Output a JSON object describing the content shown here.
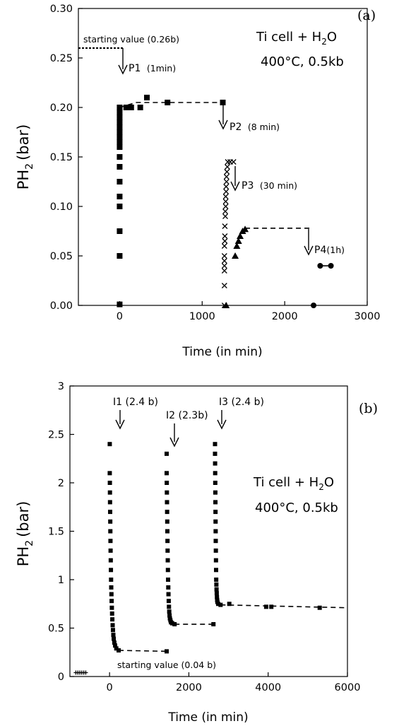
{
  "chart_data": [
    {
      "panel": "(a)",
      "type": "scatter",
      "xlabel": "Time (in min)",
      "ylabel": {
        "base": "PH",
        "sub": "2",
        "unit": "(bar)"
      },
      "xlim": [
        -500,
        3000
      ],
      "ylim": [
        0,
        0.3
      ],
      "xticks": [
        "0",
        "1000",
        "2000",
        "3000"
      ],
      "yticks": [
        "0.00",
        "0.05",
        "0.10",
        "0.15",
        "0.20",
        "0.25",
        "0.30"
      ],
      "condition_line1_parts": [
        "Ti cell + H",
        "2",
        "O"
      ],
      "condition_line2": "400°C, 0.5kb",
      "starting_label": "starting value (0.26b)",
      "starting_value": 0.26,
      "annotations": [
        {
          "label_main": "P1",
          "label_paren": "(1min)",
          "x": 0
        },
        {
          "label_main": "P2",
          "label_paren": "(8 min)",
          "x": 1250
        },
        {
          "label_main": "P3",
          "label_paren": "(30 min)",
          "x": 1300
        },
        {
          "label_main": "P4",
          "label_paren": "(1h)",
          "x": 2320
        }
      ],
      "series": [
        {
          "marker": "square",
          "points": [
            [
              0,
              0.001
            ],
            [
              0,
              0.05
            ],
            [
              0,
              0.075
            ],
            [
              0,
              0.1
            ],
            [
              0,
              0.11
            ],
            [
              0,
              0.125
            ],
            [
              0,
              0.14
            ],
            [
              0,
              0.15
            ],
            [
              0,
              0.16
            ],
            [
              0,
              0.165
            ],
            [
              0,
              0.17
            ],
            [
              0,
              0.175
            ],
            [
              0,
              0.18
            ],
            [
              0,
              0.185
            ],
            [
              0,
              0.19
            ],
            [
              0,
              0.195
            ],
            [
              0,
              0.2
            ],
            [
              80,
              0.2
            ],
            [
              140,
              0.2
            ],
            [
              250,
              0.2
            ],
            [
              330,
              0.21
            ],
            [
              580,
              0.205
            ],
            [
              1250,
              0.205
            ]
          ],
          "trend": [
            [
              0,
              0.2
            ],
            [
              200,
              0.205
            ],
            [
              1250,
              0.205
            ]
          ]
        },
        {
          "marker": "x",
          "points": [
            [
              1270,
              0.0
            ],
            [
              1270,
              0.02
            ],
            [
              1270,
              0.035
            ],
            [
              1270,
              0.04
            ],
            [
              1270,
              0.045
            ],
            [
              1270,
              0.05
            ],
            [
              1270,
              0.06
            ],
            [
              1275,
              0.065
            ],
            [
              1275,
              0.07
            ],
            [
              1275,
              0.08
            ],
            [
              1280,
              0.09
            ],
            [
              1280,
              0.095
            ],
            [
              1285,
              0.1
            ],
            [
              1285,
              0.105
            ],
            [
              1285,
              0.11
            ],
            [
              1290,
              0.115
            ],
            [
              1290,
              0.12
            ],
            [
              1295,
              0.125
            ],
            [
              1295,
              0.13
            ],
            [
              1300,
              0.135
            ],
            [
              1305,
              0.14
            ],
            [
              1310,
              0.145
            ],
            [
              1340,
              0.145
            ],
            [
              1380,
              0.145
            ]
          ],
          "trend": []
        },
        {
          "marker": "triangle",
          "points": [
            [
              1290,
              0.0
            ],
            [
              1400,
              0.05
            ],
            [
              1420,
              0.06
            ],
            [
              1440,
              0.065
            ],
            [
              1460,
              0.07
            ],
            [
              1490,
              0.075
            ],
            [
              1520,
              0.077
            ]
          ],
          "trend": [
            [
              1520,
              0.078
            ],
            [
              2320,
              0.078
            ]
          ]
        },
        {
          "marker": "circle",
          "points": [
            [
              2350,
              0.0
            ],
            [
              2430,
              0.04
            ],
            [
              2560,
              0.04
            ]
          ],
          "trend": [
            [
              2430,
              0.04
            ],
            [
              2560,
              0.04
            ]
          ]
        }
      ]
    },
    {
      "panel": "(b)",
      "type": "scatter",
      "xlabel": "Time (in min)",
      "ylabel": {
        "base": "PH",
        "sub": "2",
        "unit": "(bar)"
      },
      "xlim": [
        -1000,
        6000
      ],
      "ylim": [
        0,
        3
      ],
      "xticks": [
        "0",
        "2000",
        "4000",
        "6000"
      ],
      "yticks": [
        "0",
        "0.5",
        "1",
        "1.5",
        "2",
        "2.5",
        "3"
      ],
      "condition_line1_parts": [
        "Ti cell + H",
        "2",
        "O"
      ],
      "condition_line2": "400°C, 0.5kb",
      "starting_label": "starting value (0.04 b)",
      "starting_value": 0.04,
      "annotations": [
        {
          "label": "I1 (2.4 b)",
          "x": 0
        },
        {
          "label": "I2 (2.3b)",
          "x": 1430
        },
        {
          "label": "I3 (2.4 b)",
          "x": 2650
        }
      ],
      "series": [
        {
          "marker": "square",
          "points": [
            [
              5,
              2.4
            ],
            [
              5,
              2.1
            ],
            [
              8,
              2.0
            ],
            [
              10,
              1.9
            ],
            [
              12,
              1.8
            ],
            [
              15,
              1.7
            ],
            [
              18,
              1.6
            ],
            [
              20,
              1.5
            ],
            [
              23,
              1.4
            ],
            [
              26,
              1.3
            ],
            [
              30,
              1.2
            ],
            [
              34,
              1.1
            ],
            [
              38,
              1.0
            ],
            [
              42,
              0.92
            ],
            [
              47,
              0.85
            ],
            [
              52,
              0.78
            ],
            [
              58,
              0.71
            ],
            [
              64,
              0.65
            ],
            [
              70,
              0.59
            ],
            [
              78,
              0.53
            ],
            [
              86,
              0.48
            ],
            [
              95,
              0.43
            ],
            [
              105,
              0.39
            ],
            [
              120,
              0.35
            ],
            [
              140,
              0.32
            ],
            [
              170,
              0.29
            ],
            [
              230,
              0.27
            ],
            [
              1440,
              0.26
            ]
          ],
          "trend": [
            [
              230,
              0.27
            ],
            [
              1440,
              0.26
            ]
          ]
        },
        {
          "marker": "square",
          "points": [
            [
              1440,
              2.3
            ],
            [
              1440,
              2.1
            ],
            [
              1443,
              2.0
            ],
            [
              1446,
              1.9
            ],
            [
              1449,
              1.8
            ],
            [
              1452,
              1.7
            ],
            [
              1455,
              1.6
            ],
            [
              1458,
              1.5
            ],
            [
              1461,
              1.4
            ],
            [
              1464,
              1.3
            ],
            [
              1468,
              1.2
            ],
            [
              1472,
              1.1
            ],
            [
              1476,
              1.0
            ],
            [
              1481,
              0.92
            ],
            [
              1486,
              0.85
            ],
            [
              1492,
              0.78
            ],
            [
              1498,
              0.72
            ],
            [
              1505,
              0.67
            ],
            [
              1513,
              0.63
            ],
            [
              1522,
              0.6
            ],
            [
              1535,
              0.58
            ],
            [
              1550,
              0.56
            ],
            [
              1580,
              0.55
            ],
            [
              1640,
              0.54
            ],
            [
              2620,
              0.54
            ]
          ],
          "trend": [
            [
              1640,
              0.54
            ],
            [
              2620,
              0.54
            ]
          ]
        },
        {
          "marker": "square",
          "points": [
            [
              2660,
              2.4
            ],
            [
              2660,
              2.3
            ],
            [
              2662,
              2.2
            ],
            [
              2664,
              2.1
            ],
            [
              2666,
              2.0
            ],
            [
              2668,
              1.9
            ],
            [
              2670,
              1.8
            ],
            [
              2672,
              1.7
            ],
            [
              2674,
              1.6
            ],
            [
              2676,
              1.5
            ],
            [
              2678,
              1.4
            ],
            [
              2681,
              1.3
            ],
            [
              2684,
              1.2
            ],
            [
              2687,
              1.1
            ],
            [
              2690,
              1.0
            ],
            [
              2694,
              0.95
            ],
            [
              2698,
              0.9
            ],
            [
              2703,
              0.86
            ],
            [
              2708,
              0.82
            ],
            [
              2714,
              0.79
            ],
            [
              2720,
              0.77
            ],
            [
              2740,
              0.75
            ],
            [
              2800,
              0.74
            ],
            [
              3020,
              0.75
            ],
            [
              3950,
              0.72
            ],
            [
              4080,
              0.72
            ],
            [
              5300,
              0.71
            ]
          ],
          "trend": [
            [
              2800,
              0.74
            ],
            [
              6000,
              0.71
            ]
          ]
        },
        {
          "marker": "plus",
          "points": [
            [
              -850,
              0.04
            ],
            [
              -800,
              0.04
            ],
            [
              -750,
              0.04
            ],
            [
              -700,
              0.04
            ],
            [
              -650,
              0.04
            ],
            [
              -600,
              0.04
            ]
          ],
          "trend": []
        }
      ]
    }
  ]
}
